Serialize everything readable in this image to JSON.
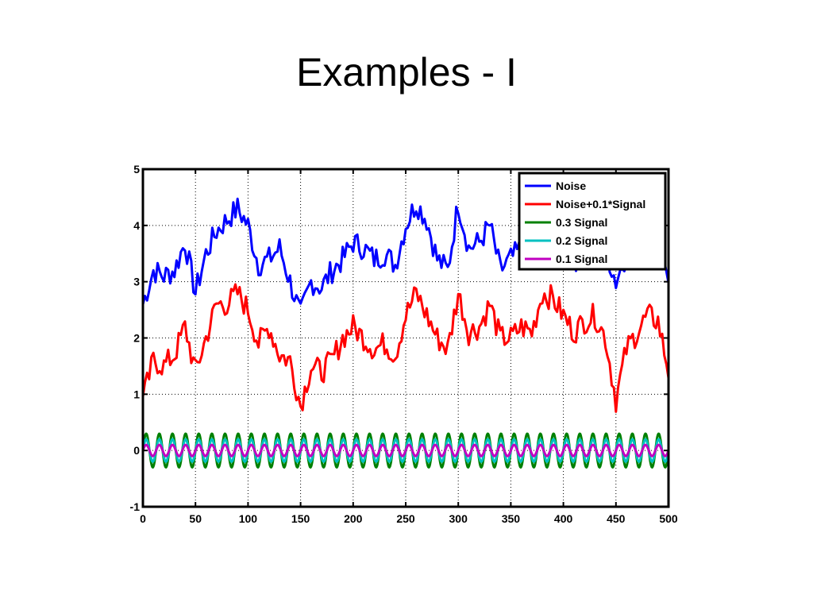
{
  "slide": {
    "title": "Examples  - I"
  },
  "chart_data": {
    "type": "line",
    "title": "",
    "xlabel": "",
    "ylabel": "",
    "xlim": [
      0,
      500
    ],
    "ylim": [
      -1,
      5
    ],
    "xticks": [
      0,
      50,
      100,
      150,
      200,
      250,
      300,
      350,
      400,
      450,
      500
    ],
    "yticks": [
      -1,
      0,
      1,
      2,
      3,
      4,
      5
    ],
    "grid": true,
    "legend_position": "top-right",
    "series": [
      {
        "name": "Noise",
        "color": "#0000ff",
        "x": [
          0,
          10,
          20,
          30,
          40,
          50,
          60,
          70,
          80,
          90,
          100,
          110,
          120,
          130,
          140,
          150,
          160,
          170,
          180,
          190,
          200,
          210,
          220,
          230,
          240,
          250,
          260,
          270,
          280,
          290,
          300,
          310,
          320,
          330,
          340,
          350,
          360,
          370,
          380,
          390,
          400,
          410,
          420,
          430,
          440,
          450,
          460,
          470,
          480,
          490,
          500
        ],
        "y": [
          2.6,
          3.2,
          3.1,
          3.2,
          3.7,
          2.8,
          3.5,
          3.9,
          4.1,
          4.3,
          4.0,
          3.3,
          3.4,
          3.6,
          3.0,
          2.4,
          3.0,
          2.9,
          3.2,
          3.4,
          3.7,
          3.6,
          3.4,
          3.5,
          3.3,
          4.0,
          4.4,
          4.1,
          3.4,
          3.2,
          4.4,
          3.6,
          3.7,
          4.0,
          3.2,
          3.4,
          3.6,
          3.4,
          3.5,
          3.5,
          3.5,
          3.4,
          3.4,
          3.5,
          3.6,
          3.0,
          3.5,
          3.6,
          3.4,
          3.5,
          3.1
        ]
      },
      {
        "name": "Noise+0.1*Signal",
        "color": "#ff0000",
        "x": [
          0,
          10,
          20,
          30,
          40,
          50,
          60,
          70,
          80,
          90,
          100,
          110,
          120,
          130,
          140,
          150,
          160,
          170,
          180,
          190,
          200,
          210,
          220,
          230,
          240,
          250,
          260,
          270,
          280,
          290,
          300,
          310,
          320,
          330,
          340,
          350,
          360,
          370,
          380,
          390,
          400,
          410,
          420,
          430,
          440,
          450,
          460,
          470,
          480,
          490,
          500
        ],
        "y": [
          0.9,
          1.6,
          1.5,
          1.7,
          2.2,
          1.4,
          2.0,
          2.6,
          2.6,
          2.8,
          2.5,
          1.9,
          2.2,
          1.7,
          1.6,
          0.8,
          1.5,
          1.4,
          1.6,
          2.0,
          2.2,
          2.0,
          1.8,
          1.9,
          1.7,
          2.4,
          2.8,
          2.4,
          2.0,
          1.8,
          2.8,
          2.1,
          2.2,
          2.6,
          2.0,
          2.0,
          2.2,
          2.1,
          2.8,
          2.7,
          2.4,
          2.1,
          2.3,
          2.4,
          2.0,
          0.9,
          1.8,
          2.1,
          2.4,
          2.3,
          1.4
        ]
      },
      {
        "name": "0.3 Signal",
        "color": "#008000",
        "amplitude": 0.3,
        "period": 12.5
      },
      {
        "name": "0.2 Signal",
        "color": "#00c0c0",
        "amplitude": 0.2,
        "period": 12.5
      },
      {
        "name": "0.1 Signal",
        "color": "#c000c0",
        "amplitude": 0.1,
        "period": 12.5
      }
    ]
  }
}
